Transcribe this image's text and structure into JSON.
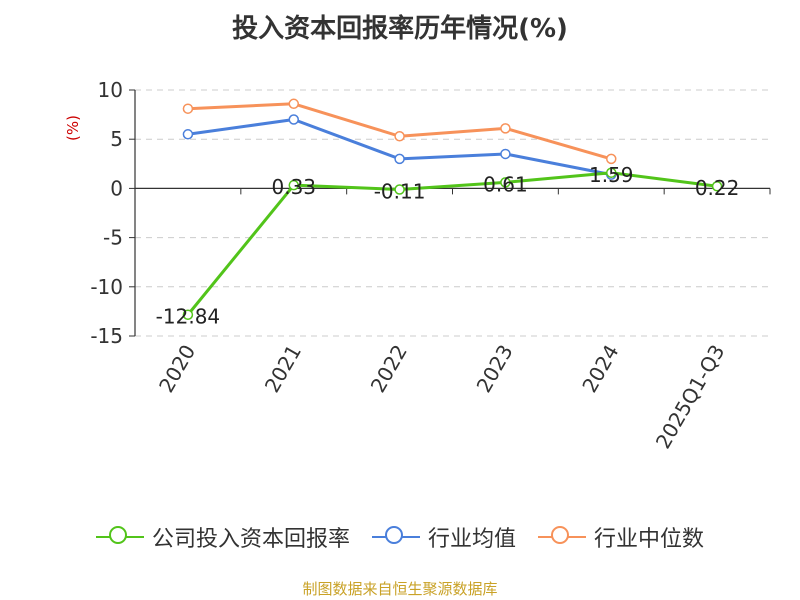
{
  "chart_data": {
    "type": "line",
    "title": "投入资本回报率历年情况(%)",
    "ylabel": "(%)",
    "xlabel": "",
    "categories": [
      "2020",
      "2021",
      "2022",
      "2023",
      "2024",
      "2025Q1-Q3"
    ],
    "ylim": [
      -15,
      10
    ],
    "yticks": [
      10,
      5,
      0,
      -5,
      -10,
      -15
    ],
    "grid": true,
    "legend_position": "bottom",
    "series": [
      {
        "name": "公司投入资本回报率",
        "color": "#52c41a",
        "values": [
          -12.84,
          0.33,
          -0.11,
          0.61,
          1.59,
          0.22
        ],
        "data_labels": [
          "-12.84",
          "0.33",
          "-0.11",
          "0.61",
          "1.59",
          "0.22"
        ]
      },
      {
        "name": "行业均值",
        "color": "#4a7fdb",
        "values": [
          5.5,
          7.0,
          3.0,
          3.5,
          1.4,
          null
        ]
      },
      {
        "name": "行业中位数",
        "color": "#f7925a",
        "values": [
          8.1,
          8.6,
          5.3,
          6.1,
          3.0,
          null
        ]
      }
    ]
  },
  "footer": {
    "source": "制图数据来自恒生聚源数据库"
  }
}
